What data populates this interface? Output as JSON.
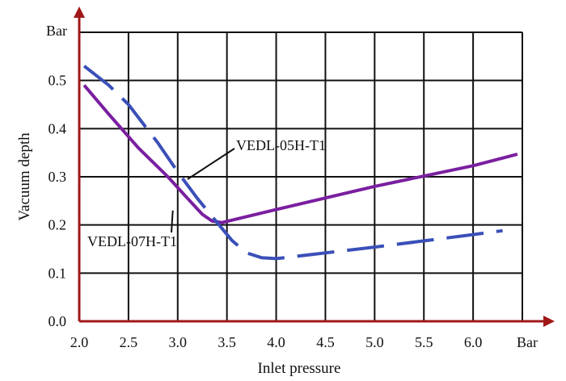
{
  "chart_data": {
    "type": "line",
    "xlabel": "Inlet pressure",
    "ylabel": "Vacuum depth",
    "x_unit": "Bar",
    "y_unit": "Bar",
    "xlim": [
      2.0,
      6.5
    ],
    "ylim": [
      0.0,
      0.6
    ],
    "x_ticks": [
      {
        "value": 2.0,
        "label": "2.0"
      },
      {
        "value": 2.5,
        "label": "2.5"
      },
      {
        "value": 3.0,
        "label": "3.0"
      },
      {
        "value": 3.5,
        "label": "3.5"
      },
      {
        "value": 4.0,
        "label": "4.0"
      },
      {
        "value": 4.5,
        "label": "4.5"
      },
      {
        "value": 5.0,
        "label": "5.0"
      },
      {
        "value": 5.5,
        "label": "5.5"
      },
      {
        "value": 6.0,
        "label": "6.0"
      }
    ],
    "y_ticks": [
      {
        "value": 0.0,
        "label": "0.0"
      },
      {
        "value": 0.1,
        "label": "0.1"
      },
      {
        "value": 0.2,
        "label": "0.2"
      },
      {
        "value": 0.3,
        "label": "0.3"
      },
      {
        "value": 0.4,
        "label": "0.4"
      },
      {
        "value": 0.5,
        "label": "0.5"
      }
    ],
    "grid": true,
    "axis_color": "#a01818",
    "series": [
      {
        "name": "VEDL-07H-T1",
        "color": "#7a1fa0",
        "style": "solid",
        "points": [
          [
            2.05,
            0.49
          ],
          [
            2.3,
            0.43
          ],
          [
            2.6,
            0.36
          ],
          [
            2.9,
            0.3
          ],
          [
            3.1,
            0.255
          ],
          [
            3.25,
            0.222
          ],
          [
            3.35,
            0.208
          ],
          [
            3.45,
            0.205
          ],
          [
            4.0,
            0.232
          ],
          [
            5.0,
            0.28
          ],
          [
            6.0,
            0.323
          ],
          [
            6.45,
            0.347
          ]
        ]
      },
      {
        "name": "VEDL-05H-T1",
        "color": "#3a4fb8",
        "style": "dashed",
        "points": [
          [
            2.05,
            0.53
          ],
          [
            2.3,
            0.49
          ],
          [
            2.5,
            0.45
          ],
          [
            2.8,
            0.37
          ],
          [
            3.0,
            0.31
          ],
          [
            3.2,
            0.255
          ],
          [
            3.4,
            0.205
          ],
          [
            3.55,
            0.168
          ],
          [
            3.7,
            0.142
          ],
          [
            3.85,
            0.132
          ],
          [
            4.0,
            0.13
          ],
          [
            4.5,
            0.142
          ],
          [
            5.0,
            0.154
          ],
          [
            5.5,
            0.167
          ],
          [
            6.0,
            0.18
          ],
          [
            6.3,
            0.188
          ]
        ]
      }
    ],
    "annotations": [
      {
        "text": "VEDL-05H-T1",
        "series": "VEDL-05H-T1",
        "at_x": 3.1,
        "at_y": 0.295
      },
      {
        "text": "VEDL-07H-T1",
        "series": "VEDL-07H-T1",
        "at_x": 2.95,
        "at_y": 0.23
      }
    ]
  }
}
